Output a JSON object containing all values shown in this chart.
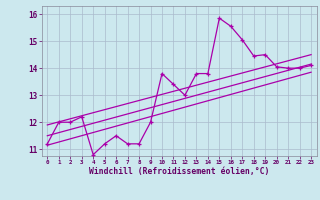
{
  "xlabel": "Windchill (Refroidissement éolien,°C)",
  "bg_color": "#cce8ee",
  "line_color": "#aa00aa",
  "grid_color": "#aabbcc",
  "xlim": [
    -0.5,
    23.5
  ],
  "ylim": [
    10.75,
    16.3
  ],
  "xtick_vals": [
    0,
    1,
    2,
    3,
    4,
    5,
    6,
    7,
    8,
    9,
    10,
    11,
    12,
    13,
    14,
    15,
    16,
    17,
    18,
    19,
    20,
    21,
    22,
    23
  ],
  "xtick_labels": [
    "0",
    "1",
    "2",
    "3",
    "4",
    "5",
    "6",
    "7",
    "8",
    "9",
    "10",
    "11",
    "12",
    "13",
    "14",
    "15",
    "16",
    "17",
    "18",
    "19",
    "20",
    "21",
    "22",
    "23"
  ],
  "ytick_vals": [
    11,
    12,
    13,
    14,
    15,
    16
  ],
  "ytick_labels": [
    "11",
    "12",
    "13",
    "14",
    "15",
    "16"
  ],
  "line1_x": [
    0,
    1,
    2,
    3,
    4,
    5,
    6,
    7,
    8,
    9,
    10,
    11,
    12,
    13,
    14,
    15,
    16,
    17,
    18,
    19,
    20,
    21,
    22,
    23
  ],
  "line1_y": [
    11.2,
    12.0,
    12.0,
    12.2,
    10.8,
    11.2,
    11.5,
    11.2,
    11.2,
    12.0,
    13.8,
    13.4,
    13.0,
    13.8,
    13.8,
    15.85,
    15.55,
    15.05,
    14.45,
    14.5,
    14.05,
    14.0,
    14.0,
    14.1
  ],
  "line2_x": [
    0,
    23
  ],
  "line2_y": [
    11.15,
    13.85
  ],
  "line3_x": [
    0,
    23
  ],
  "line3_y": [
    11.5,
    14.15
  ],
  "line4_x": [
    0,
    23
  ],
  "line4_y": [
    11.9,
    14.5
  ]
}
